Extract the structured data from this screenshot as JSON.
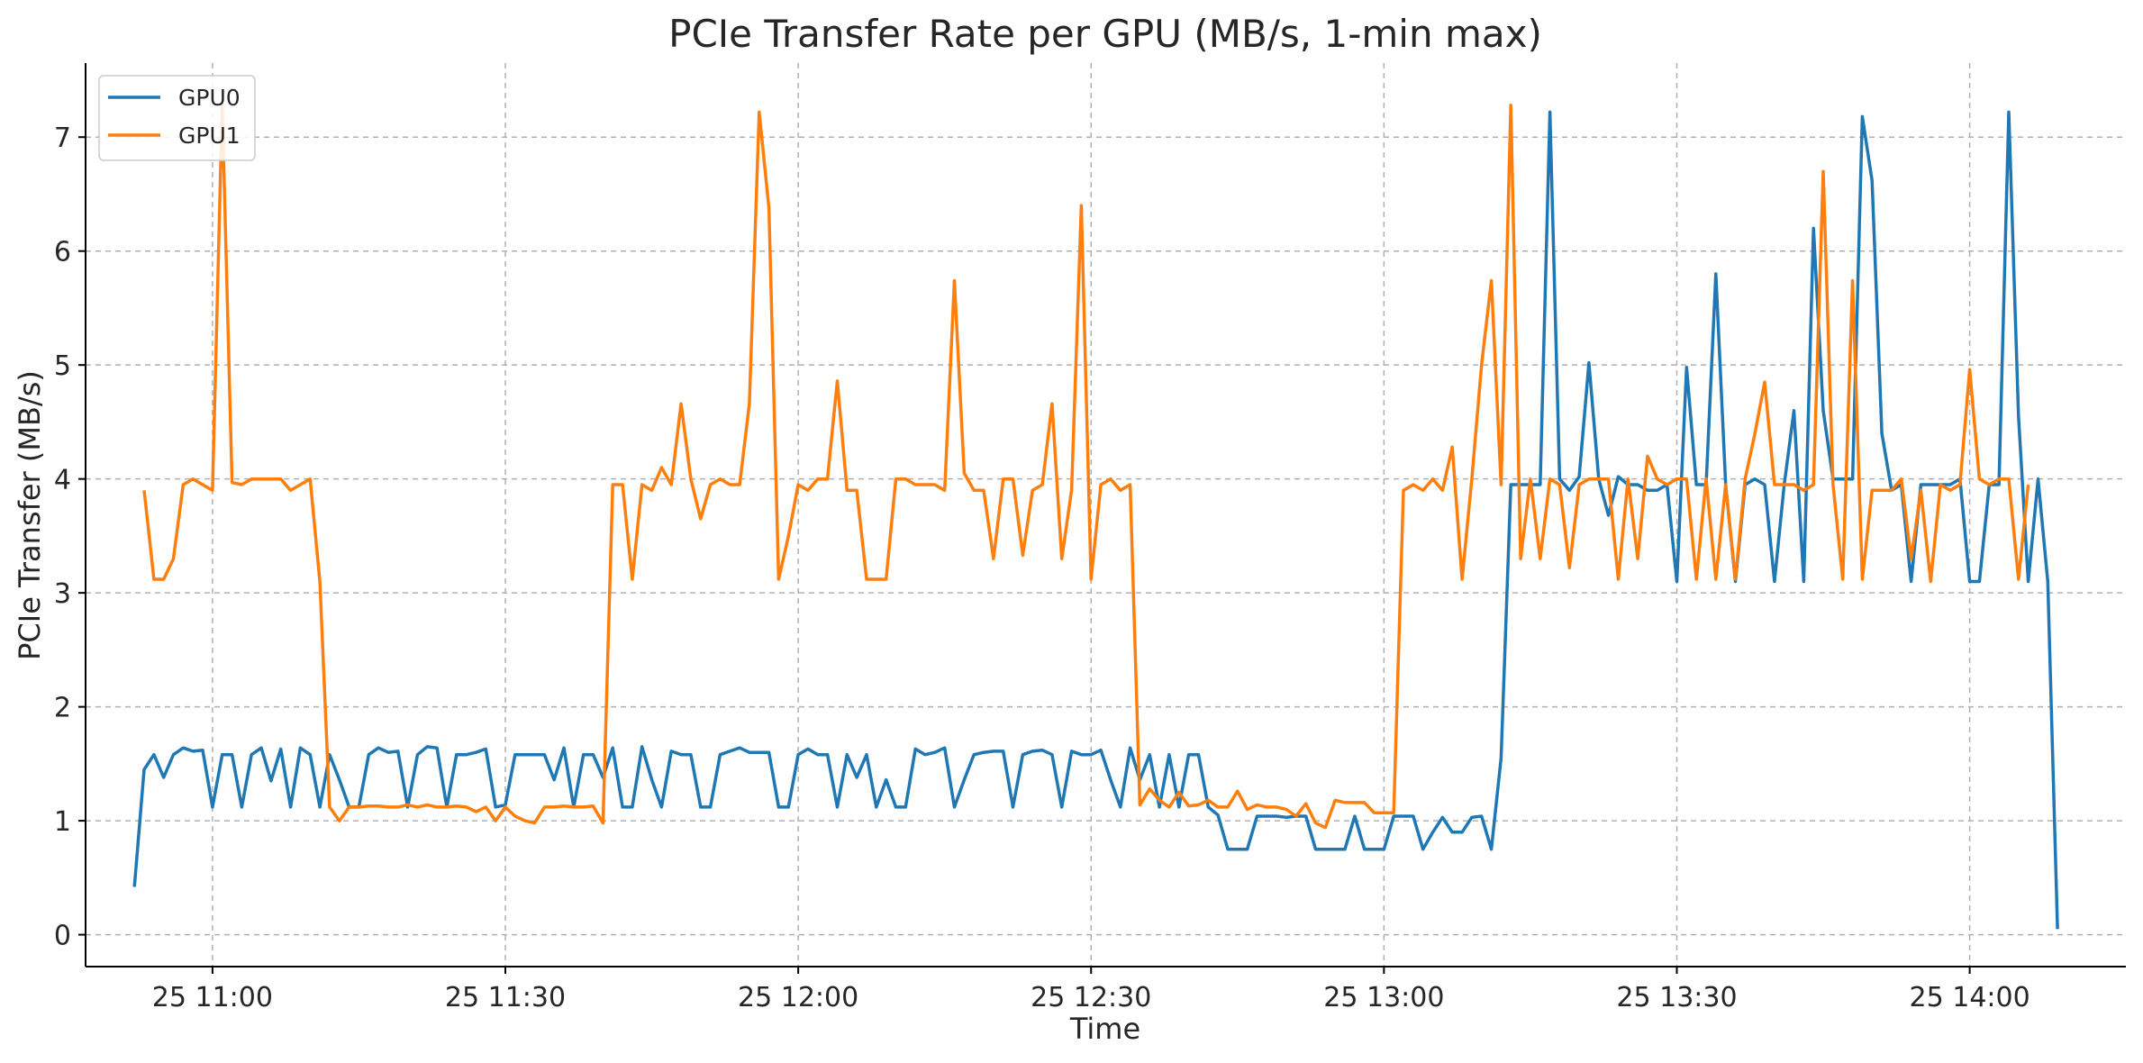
{
  "chart_data": {
    "type": "line",
    "title": "PCIe Transfer Rate per GPU (MB/s, 1-min max)",
    "xlabel": "Time",
    "ylabel": "PCIe Transfer (MB/s)",
    "xlim": [
      "2024-06-25 10:47:00",
      "2024-06-25 14:16:00"
    ],
    "ylim": [
      -0.28,
      7.65
    ],
    "grid": true,
    "legend_position": "top-left",
    "x_ticks": [
      "25 11:00",
      "25 11:30",
      "25 12:00",
      "25 12:30",
      "25 13:00",
      "25 13:30",
      "25 14:00"
    ],
    "y_ticks": [
      "0",
      "1",
      "2",
      "3",
      "4",
      "5",
      "6",
      "7"
    ],
    "series": [
      {
        "name": "GPU0",
        "color": "#1f77b4",
        "x_start": "2024-06-25 10:52:00",
        "step_minutes": 1,
        "values": [
          0.42,
          1.45,
          1.58,
          1.38,
          1.58,
          1.64,
          1.61,
          1.62,
          1.12,
          1.58,
          1.58,
          1.12,
          1.58,
          1.64,
          1.35,
          1.63,
          1.12,
          1.64,
          1.58,
          1.12,
          1.58,
          1.36,
          1.12,
          1.12,
          1.58,
          1.64,
          1.6,
          1.61,
          1.12,
          1.58,
          1.65,
          1.64,
          1.12,
          1.58,
          1.58,
          1.6,
          1.63,
          1.12,
          1.14,
          1.58,
          1.58,
          1.58,
          1.58,
          1.36,
          1.64,
          1.12,
          1.58,
          1.58,
          1.38,
          1.64,
          1.12,
          1.12,
          1.65,
          1.36,
          1.12,
          1.61,
          1.58,
          1.58,
          1.12,
          1.12,
          1.58,
          1.61,
          1.64,
          1.6,
          1.6,
          1.6,
          1.12,
          1.12,
          1.58,
          1.63,
          1.58,
          1.58,
          1.12,
          1.58,
          1.38,
          1.58,
          1.12,
          1.36,
          1.12,
          1.12,
          1.63,
          1.58,
          1.6,
          1.64,
          1.12,
          1.36,
          1.58,
          1.6,
          1.61,
          1.61,
          1.12,
          1.58,
          1.61,
          1.62,
          1.58,
          1.12,
          1.61,
          1.58,
          1.58,
          1.62,
          1.36,
          1.12,
          1.64,
          1.36,
          1.58,
          1.12,
          1.58,
          1.12,
          1.58,
          1.58,
          1.12,
          1.05,
          0.75,
          0.75,
          0.75,
          1.04,
          1.04,
          1.04,
          1.03,
          1.04,
          1.04,
          0.75,
          0.75,
          0.75,
          0.75,
          1.04,
          0.75,
          0.75,
          0.75,
          1.04,
          1.04,
          1.04,
          0.75,
          0.9,
          1.03,
          0.9,
          0.9,
          1.03,
          1.04,
          0.75,
          1.55,
          3.95,
          3.95,
          3.95,
          3.95,
          7.22,
          4.0,
          3.9,
          4.02,
          5.02,
          4.0,
          3.68,
          4.02,
          3.95,
          3.95,
          3.9,
          3.9,
          3.95,
          3.1,
          4.98,
          3.95,
          3.95,
          5.8,
          3.95,
          3.1,
          3.95,
          4.0,
          3.95,
          3.1,
          3.95,
          4.6,
          3.1,
          6.2,
          4.6,
          4.0,
          4.0,
          4.0,
          7.18,
          6.62,
          4.4,
          3.9,
          3.95,
          3.1,
          3.95,
          3.95,
          3.95,
          3.95,
          4.0,
          3.1,
          3.1,
          3.95,
          3.95,
          7.22,
          4.55,
          3.1,
          4.0,
          3.1,
          0.05
        ]
      },
      {
        "name": "GPU1",
        "color": "#ff7f0e",
        "x_start": "2024-06-25 10:53:00",
        "step_minutes": 1,
        "values": [
          3.9,
          3.12,
          3.12,
          3.3,
          3.95,
          4.0,
          3.95,
          3.9,
          7.28,
          3.97,
          3.95,
          4.0,
          4.0,
          4.0,
          4.0,
          3.9,
          3.95,
          4.0,
          3.1,
          1.12,
          1.0,
          1.12,
          1.12,
          1.13,
          1.13,
          1.12,
          1.12,
          1.14,
          1.12,
          1.14,
          1.12,
          1.12,
          1.13,
          1.12,
          1.08,
          1.12,
          1.0,
          1.12,
          1.04,
          1.0,
          0.98,
          1.12,
          1.12,
          1.13,
          1.12,
          1.12,
          1.13,
          0.98,
          3.95,
          3.95,
          3.12,
          3.95,
          3.9,
          4.1,
          3.95,
          4.66,
          4.0,
          3.65,
          3.95,
          4.0,
          3.95,
          3.95,
          4.66,
          7.22,
          6.38,
          3.12,
          3.5,
          3.95,
          3.9,
          4.0,
          4.0,
          4.86,
          3.9,
          3.9,
          3.12,
          3.12,
          3.12,
          4.0,
          4.0,
          3.95,
          3.95,
          3.95,
          3.9,
          5.74,
          4.05,
          3.9,
          3.9,
          3.3,
          4.0,
          4.0,
          3.33,
          3.9,
          3.95,
          4.66,
          3.3,
          3.9,
          6.4,
          3.12,
          3.95,
          4.0,
          3.9,
          3.95,
          1.14,
          1.28,
          1.18,
          1.12,
          1.25,
          1.13,
          1.14,
          1.18,
          1.12,
          1.12,
          1.26,
          1.1,
          1.14,
          1.12,
          1.12,
          1.1,
          1.04,
          1.15,
          0.98,
          0.94,
          1.18,
          1.16,
          1.16,
          1.16,
          1.07,
          1.07,
          1.07,
          3.9,
          3.95,
          3.9,
          4.0,
          3.9,
          4.28,
          3.12,
          4.0,
          5.0,
          5.74,
          3.95,
          7.28,
          3.3,
          4.0,
          3.3,
          4.0,
          3.95,
          3.22,
          3.95,
          4.0,
          4.0,
          4.0,
          3.12,
          4.0,
          3.3,
          4.2,
          4.0,
          3.95,
          4.0,
          4.0,
          3.12,
          4.0,
          3.12,
          3.95,
          3.12,
          4.0,
          4.4,
          4.85,
          3.95,
          3.95,
          3.95,
          3.9,
          3.95,
          6.7,
          3.95,
          3.12,
          5.74,
          3.12,
          3.9,
          3.9,
          3.9,
          4.0,
          3.3,
          3.9,
          3.1,
          3.95,
          3.9,
          3.95,
          4.96,
          4.0,
          3.95,
          4.0,
          4.0,
          3.12,
          3.95
        ]
      }
    ]
  }
}
